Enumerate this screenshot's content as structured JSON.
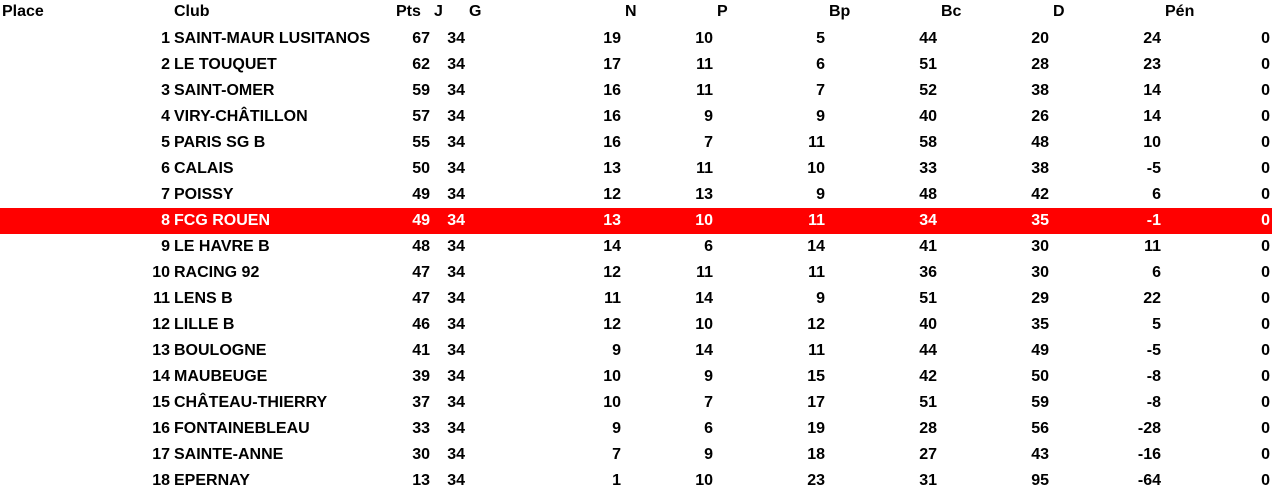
{
  "headers": [
    "Place",
    "Club",
    "Pts",
    "J",
    "G",
    "N",
    "P",
    "Bp",
    "Bc",
    "D",
    "Pén"
  ],
  "highlight_color": "#FF0000",
  "highlight_row": 8,
  "rows": [
    [
      "1",
      "SAINT-MAUR LUSITANOS",
      "67",
      "34",
      "19",
      "10",
      "5",
      "44",
      "20",
      "24",
      "0"
    ],
    [
      "2",
      "LE TOUQUET",
      "62",
      "34",
      "17",
      "11",
      "6",
      "51",
      "28",
      "23",
      "0"
    ],
    [
      "3",
      "SAINT-OMER",
      "59",
      "34",
      "16",
      "11",
      "7",
      "52",
      "38",
      "14",
      "0"
    ],
    [
      "4",
      "VIRY-CHÂTILLON",
      "57",
      "34",
      "16",
      "9",
      "9",
      "40",
      "26",
      "14",
      "0"
    ],
    [
      "5",
      "PARIS SG B",
      "55",
      "34",
      "16",
      "7",
      "11",
      "58",
      "48",
      "10",
      "0"
    ],
    [
      "6",
      "CALAIS",
      "50",
      "34",
      "13",
      "11",
      "10",
      "33",
      "38",
      "-5",
      "0"
    ],
    [
      "7",
      "POISSY",
      "49",
      "34",
      "12",
      "13",
      "9",
      "48",
      "42",
      "6",
      "0"
    ],
    [
      "8",
      "FCG ROUEN",
      "49",
      "34",
      "13",
      "10",
      "11",
      "34",
      "35",
      "-1",
      "0"
    ],
    [
      "9",
      "LE HAVRE B",
      "48",
      "34",
      "14",
      "6",
      "14",
      "41",
      "30",
      "11",
      "0"
    ],
    [
      "10",
      "RACING 92",
      "47",
      "34",
      "12",
      "11",
      "11",
      "36",
      "30",
      "6",
      "0"
    ],
    [
      "11",
      "LENS B",
      "47",
      "34",
      "11",
      "14",
      "9",
      "51",
      "29",
      "22",
      "0"
    ],
    [
      "12",
      "LILLE B",
      "46",
      "34",
      "12",
      "10",
      "12",
      "40",
      "35",
      "5",
      "0"
    ],
    [
      "13",
      "BOULOGNE",
      "41",
      "34",
      "9",
      "14",
      "11",
      "44",
      "49",
      "-5",
      "0"
    ],
    [
      "14",
      "MAUBEUGE",
      "39",
      "34",
      "10",
      "9",
      "15",
      "42",
      "50",
      "-8",
      "0"
    ],
    [
      "15",
      "CHÂTEAU-THIERRY",
      "37",
      "34",
      "10",
      "7",
      "17",
      "51",
      "59",
      "-8",
      "0"
    ],
    [
      "16",
      "FONTAINEBLEAU",
      "33",
      "34",
      "9",
      "6",
      "19",
      "28",
      "56",
      "-28",
      "0"
    ],
    [
      "17",
      "SAINTE-ANNE",
      "30",
      "34",
      "7",
      "9",
      "18",
      "27",
      "43",
      "-16",
      "0"
    ],
    [
      "18",
      "EPERNAY",
      "13",
      "34",
      "1",
      "10",
      "23",
      "31",
      "95",
      "-64",
      "0"
    ]
  ]
}
